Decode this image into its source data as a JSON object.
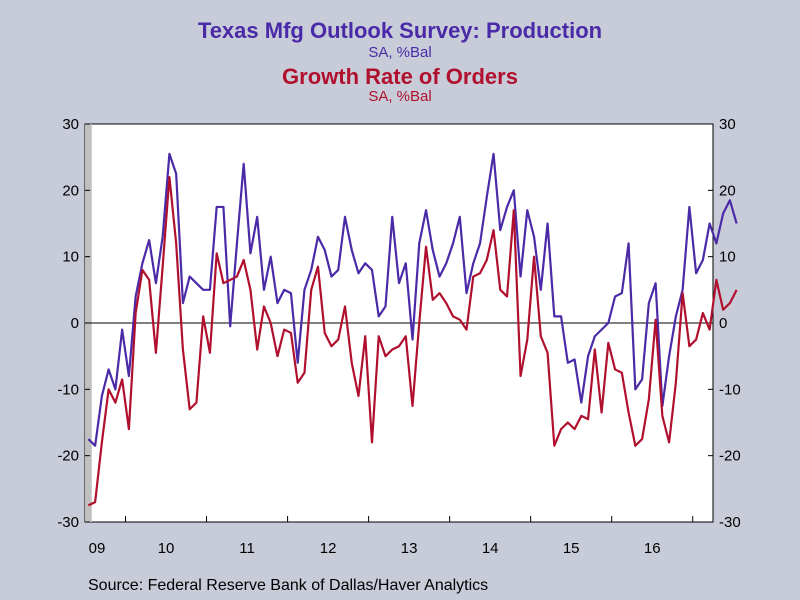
{
  "chart_data": {
    "type": "line",
    "series": [
      {
        "name": "Texas Mfg Outlook Survey: Production",
        "units": "SA, %Bal",
        "color": "#4b2aa8",
        "values": [
          -17.5,
          -18.5,
          -11,
          -7,
          -10,
          -1,
          -8,
          4,
          9,
          12.5,
          6,
          13,
          25.5,
          22.5,
          3,
          7,
          6,
          5,
          5,
          17.5,
          17.5,
          -0.5,
          12,
          24,
          10.5,
          16,
          5,
          10,
          3,
          5,
          4.5,
          -6,
          5,
          8,
          13,
          11,
          7,
          8,
          16,
          11,
          7.5,
          9,
          8,
          1,
          2.5,
          16,
          6,
          9,
          -2.5,
          12,
          17,
          11,
          7,
          9,
          12,
          16,
          4.5,
          9,
          12,
          19,
          25.5,
          14,
          17.5,
          20,
          7,
          17,
          13,
          5,
          15,
          1,
          1,
          -6,
          -5.5,
          -12,
          -5,
          -2,
          -1,
          0,
          4,
          4.5,
          12,
          -10,
          -8.5,
          3,
          6,
          -12.5,
          -5,
          1,
          5,
          17.5,
          7.5,
          9.5,
          15,
          12,
          16.5,
          18.5,
          15
        ]
      },
      {
        "name": "Growth Rate of Orders",
        "units": "SA, %Bal",
        "color": "#b0102e",
        "values": [
          -27.5,
          -27,
          -18,
          -10,
          -12,
          -8.5,
          -16,
          1.5,
          8,
          6.5,
          -4.5,
          8.5,
          22,
          12,
          -4,
          -13,
          -12,
          1,
          -4.5,
          10.5,
          6,
          6.5,
          7,
          9.5,
          5,
          -4,
          2.5,
          0,
          -5,
          -1,
          -1.5,
          -9,
          -7.5,
          5,
          8.5,
          -1.5,
          -3.5,
          -2.5,
          2.5,
          -6,
          -11,
          -2,
          -18,
          -2,
          -5,
          -4,
          -3.5,
          -2,
          -12.5,
          0,
          11.5,
          3.5,
          4.5,
          3,
          1,
          0.5,
          -1,
          7,
          7.5,
          9.5,
          14,
          5,
          4,
          17,
          -8,
          -2.5,
          10,
          -2,
          -4.5,
          -18.5,
          -16,
          -15,
          -16,
          -14,
          -14.5,
          -4,
          -13.5,
          -3,
          -7,
          -7.5,
          -13.5,
          -18.5,
          -17.5,
          -11.5,
          0.5,
          -14,
          -18,
          -9,
          4.5,
          -3.5,
          -2.5,
          1.5,
          -1,
          6.5,
          2,
          3,
          5
        ]
      }
    ],
    "x": {
      "start_year": 2009,
      "start_month": 7,
      "end_year": 2017,
      "end_month": 3,
      "tick_labels": [
        "09",
        "10",
        "11",
        "12",
        "13",
        "14",
        "15",
        "16"
      ]
    },
    "ylim": [
      -30,
      30
    ],
    "yticks": [
      -30,
      -20,
      -10,
      0,
      10,
      20,
      30
    ],
    "recession_shading": {
      "start_year": 2009,
      "start_month": 7,
      "end_year": 2009,
      "end_month": 7
    },
    "zero_line": true,
    "grid": false
  },
  "titles": {
    "main1": "Texas Mfg Outlook Survey: Production",
    "sub1": "SA, %Bal",
    "main2": "Growth Rate of Orders",
    "sub2": "SA, %Bal"
  },
  "source": "Source:  Federal Reserve Bank of Dallas/Haver Analytics",
  "colors": {
    "background": "#c8ccd8",
    "plot_background": "#ffffff",
    "recession": "#c0c0c0"
  }
}
